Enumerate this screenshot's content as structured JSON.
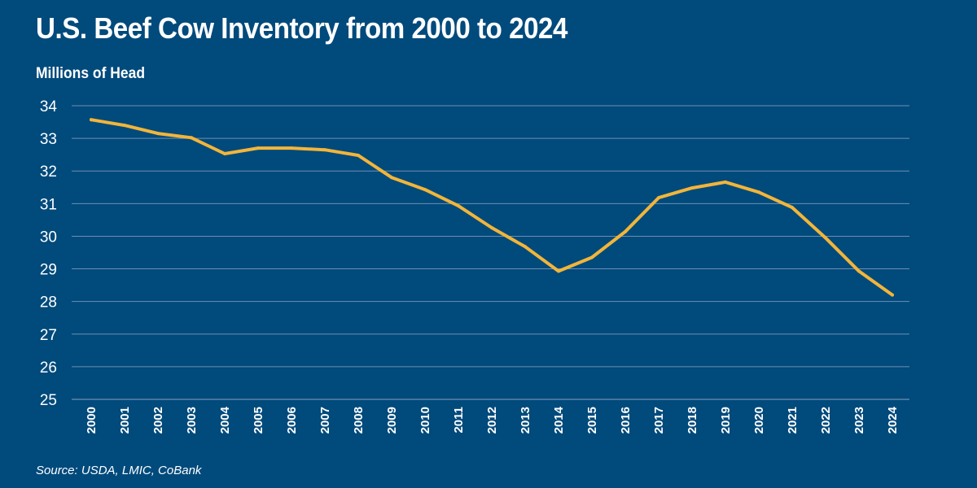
{
  "page": {
    "title": "U.S. Beef Cow Inventory from 2000 to 2024",
    "source": "Source: USDA, LMIC, CoBank"
  },
  "chart_data": {
    "type": "line",
    "title": "U.S. Beef Cow Inventory from 2000 to 2024",
    "ylabel": "Millions of Head",
    "xlabel": "",
    "ylim": [
      25,
      34
    ],
    "yticks": [
      25,
      26,
      27,
      28,
      29,
      30,
      31,
      32,
      33,
      34
    ],
    "grid": true,
    "line_color": "#f2b53a",
    "grid_color": "#6f8fb1",
    "background_color": "#004a7c",
    "x": [
      "2000",
      "2001",
      "2002",
      "2003",
      "2004",
      "2005",
      "2006",
      "2007",
      "2008",
      "2009",
      "2010",
      "2011",
      "2012",
      "2013",
      "2014",
      "2015",
      "2016",
      "2017",
      "2018",
      "2019",
      "2020",
      "2021",
      "2022",
      "2023",
      "2024"
    ],
    "series": [
      {
        "values": [
          33.57,
          33.4,
          33.15,
          33.02,
          32.53,
          32.7,
          32.7,
          32.65,
          32.48,
          31.8,
          31.43,
          30.93,
          30.26,
          29.68,
          28.93,
          29.35,
          30.14,
          31.18,
          31.48,
          31.66,
          31.35,
          30.88,
          29.95,
          28.93,
          28.2
        ]
      }
    ]
  }
}
